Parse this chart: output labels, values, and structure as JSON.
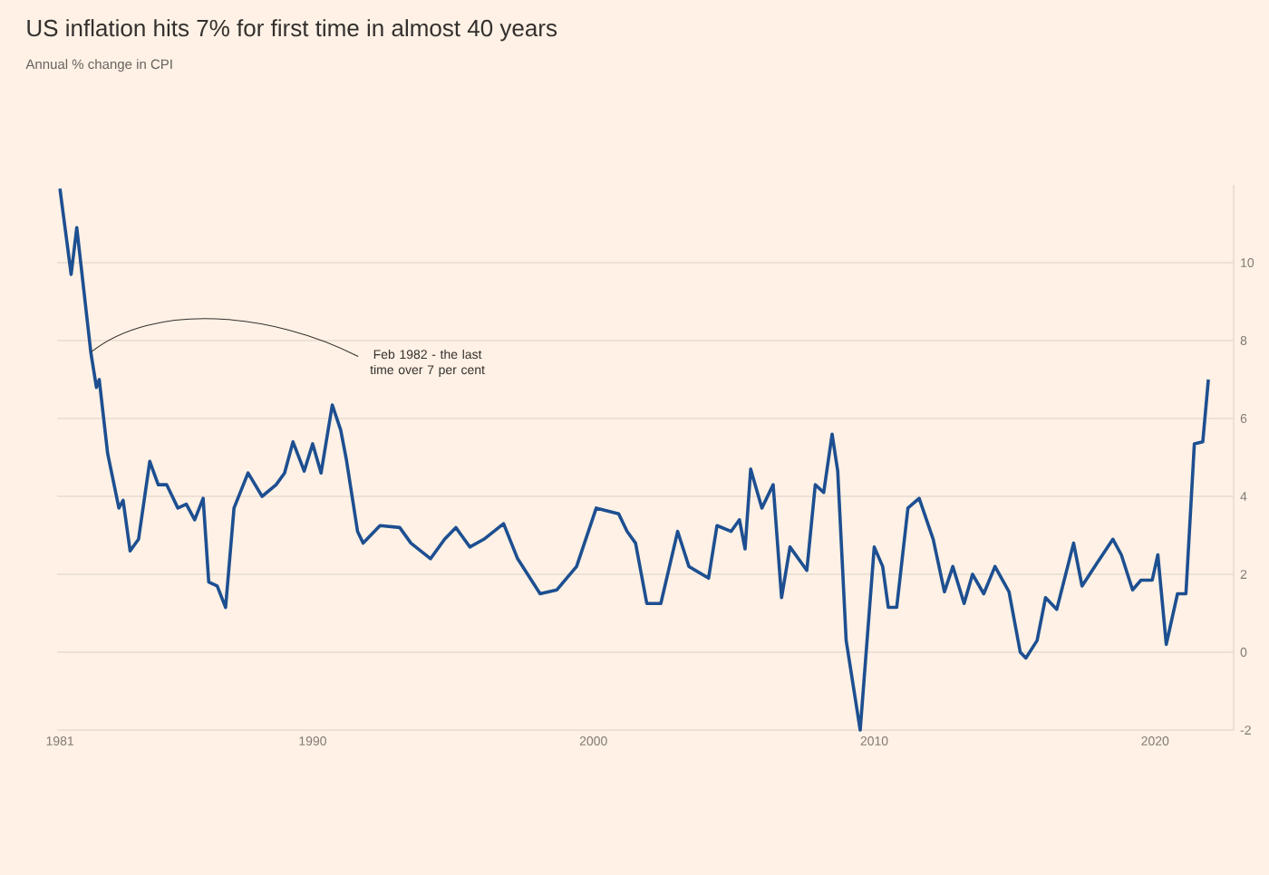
{
  "chart_data": {
    "type": "line",
    "title": "US inflation hits 7% for first time in almost 40 years",
    "subtitle": "Annual % change in CPI",
    "x": [
      1981.0,
      1981.4,
      1981.6,
      1982.1,
      1982.3,
      1982.4,
      1982.7,
      1983.1,
      1983.25,
      1983.5,
      1983.8,
      1984.2,
      1984.5,
      1984.8,
      1985.2,
      1985.5,
      1985.8,
      1986.1,
      1986.3,
      1986.6,
      1986.9,
      1987.2,
      1987.7,
      1988.2,
      1988.7,
      1989.0,
      1989.3,
      1989.7,
      1990.0,
      1990.3,
      1990.7,
      1991.0,
      1991.2,
      1991.6,
      1991.8,
      1992.4,
      1993.1,
      1993.5,
      1994.2,
      1994.7,
      1995.1,
      1995.6,
      1996.1,
      1996.8,
      1997.3,
      1998.1,
      1998.7,
      1999.4,
      2000.1,
      2000.9,
      2001.2,
      2001.5,
      2001.9,
      2002.4,
      2003.0,
      2003.4,
      2004.1,
      2004.4,
      2004.9,
      2005.2,
      2005.4,
      2005.6,
      2006.0,
      2006.4,
      2006.7,
      2007.0,
      2007.6,
      2007.9,
      2008.2,
      2008.5,
      2008.7,
      2009.0,
      2009.5,
      2010.0,
      2010.3,
      2010.5,
      2010.8,
      2011.2,
      2011.6,
      2012.1,
      2012.5,
      2012.8,
      2013.2,
      2013.5,
      2013.9,
      2014.3,
      2014.8,
      2015.2,
      2015.4,
      2015.8,
      2016.1,
      2016.5,
      2017.1,
      2017.4,
      2017.9,
      2018.5,
      2018.8,
      2019.2,
      2019.5,
      2019.9,
      2020.1,
      2020.4,
      2020.8,
      2021.1,
      2021.4,
      2021.7,
      2021.9
    ],
    "values": [
      11.9,
      9.7,
      10.9,
      7.7,
      6.8,
      7.0,
      5.1,
      3.7,
      3.9,
      2.6,
      2.9,
      4.9,
      4.3,
      4.3,
      3.7,
      3.8,
      3.4,
      3.95,
      1.8,
      1.7,
      1.15,
      3.7,
      4.6,
      4.0,
      4.3,
      4.6,
      5.4,
      4.65,
      5.35,
      4.6,
      6.35,
      5.7,
      4.95,
      3.1,
      2.8,
      3.25,
      3.2,
      2.8,
      2.4,
      2.9,
      3.2,
      2.7,
      2.9,
      3.3,
      2.4,
      1.5,
      1.6,
      2.2,
      3.7,
      3.55,
      3.1,
      2.8,
      1.25,
      1.25,
      3.1,
      2.2,
      1.9,
      3.25,
      3.1,
      3.4,
      2.65,
      4.7,
      3.7,
      4.3,
      1.4,
      2.7,
      2.1,
      4.3,
      4.1,
      5.6,
      4.65,
      0.3,
      -2.0,
      2.7,
      2.2,
      1.15,
      1.15,
      3.7,
      3.95,
      2.9,
      1.55,
      2.2,
      1.25,
      2.0,
      1.5,
      2.2,
      1.55,
      0.0,
      -0.15,
      0.3,
      1.4,
      1.1,
      2.8,
      1.7,
      2.25,
      2.9,
      2.5,
      1.6,
      1.85,
      1.85,
      2.5,
      0.2,
      1.5,
      1.5,
      5.35,
      5.4,
      7.0
    ],
    "color": "#1d4f91",
    "xlim": [
      1980.9,
      2022.8
    ],
    "ylim": [
      -2,
      12
    ],
    "xticks": [
      1981,
      1990,
      2000,
      2010,
      2020
    ],
    "yticks": [
      -2,
      0,
      2,
      4,
      6,
      8,
      10
    ],
    "grid": "y",
    "annotations": [
      {
        "text": "Feb 1982 - the last time over 7 per cent",
        "x": 1982.1,
        "y": 7.7
      }
    ]
  }
}
